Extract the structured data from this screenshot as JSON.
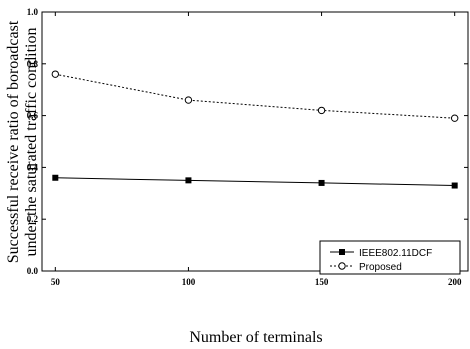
{
  "chart_data": {
    "type": "line",
    "title": "",
    "xlabel": "Number of terminals",
    "ylabel_line1": "Successful receive ratio of boroadcast",
    "ylabel_line2": "under the saturated traffic condition",
    "xlim": [
      45,
      205
    ],
    "ylim": [
      0.0,
      1.0
    ],
    "xticks": [
      50,
      100,
      150,
      200
    ],
    "xtick_labels": [
      "50",
      "100",
      "150",
      "200"
    ],
    "yticks": [
      0.0,
      0.2,
      0.4,
      0.6,
      0.8,
      1.0
    ],
    "ytick_labels": [
      "0.0",
      "0.2",
      "0.4",
      "0.6",
      "0.8",
      "1.0"
    ],
    "grid": false,
    "legend_position": "bottom-right",
    "x": [
      50,
      100,
      150,
      200
    ],
    "series": [
      {
        "name": "IEEE802.11DCF",
        "values": [
          0.36,
          0.35,
          0.34,
          0.33
        ],
        "line_style": "solid",
        "marker": "filled-square",
        "color": "#000000"
      },
      {
        "name": "Proposed",
        "values": [
          0.76,
          0.66,
          0.62,
          0.59
        ],
        "line_style": "dashed",
        "marker": "open-circle",
        "color": "#000000"
      }
    ]
  }
}
